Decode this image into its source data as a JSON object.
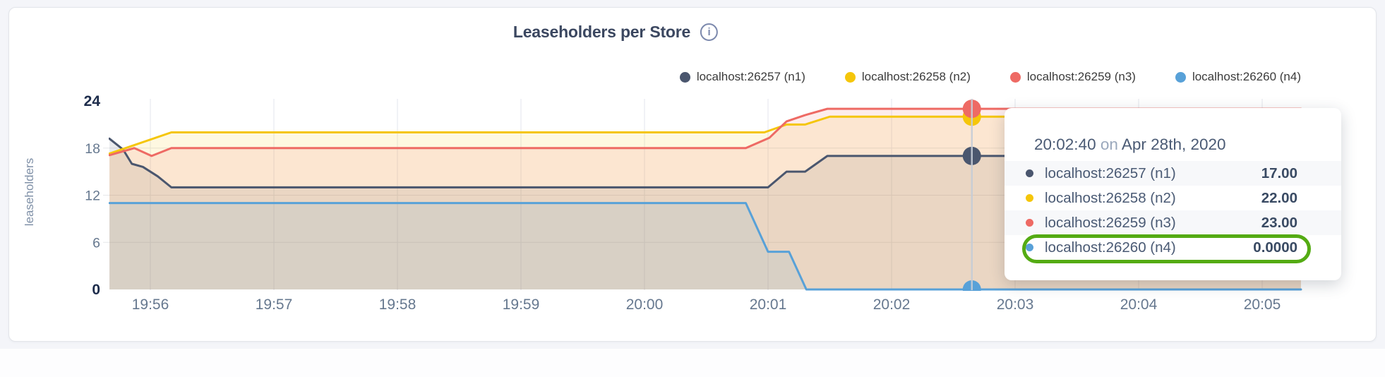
{
  "page": {
    "background": "#f4f5f9",
    "card_background": "#ffffff"
  },
  "header": {
    "title": "Leaseholders per Store",
    "info_icon_glyph": "i"
  },
  "tooltip": {
    "time": "20:02:40",
    "preposition": "on",
    "date": "Apr 28th, 2020",
    "highlight_color": "#54ab13"
  },
  "chart_data": {
    "type": "area",
    "title": "Leaseholders per Store",
    "ylabel": "leaseholders",
    "ylim": [
      0,
      24
    ],
    "grid": true,
    "legend_position": "top-right",
    "x_ticks": [
      "19:56",
      "19:57",
      "19:58",
      "19:59",
      "20:00",
      "20:01",
      "20:02",
      "20:03",
      "20:04",
      "20:05"
    ],
    "y_ticks": [
      0,
      6,
      12,
      18,
      24
    ],
    "x_range_minutes_from_1956": [
      -0.331,
      9.314
    ],
    "hover": {
      "minute": 6.65,
      "time_label": "20:02:40",
      "values": [
        17,
        22,
        23,
        0
      ]
    },
    "series": [
      {
        "name": "localhost:26257 (n1)",
        "color": "#4a566e",
        "hover_display": "17.00",
        "points": [
          [
            -0.331,
            19.2
          ],
          [
            -0.22,
            17.8
          ],
          [
            -0.15,
            16.0
          ],
          [
            -0.06,
            15.6
          ],
          [
            0.06,
            14.4
          ],
          [
            0.17,
            13
          ],
          [
            5.0,
            13
          ],
          [
            5.15,
            15
          ],
          [
            5.3,
            15
          ],
          [
            5.48,
            17
          ],
          [
            9.314,
            17
          ]
        ]
      },
      {
        "name": "localhost:26258 (n2)",
        "color": "#f5c60a",
        "hover_display": "22.00",
        "points": [
          [
            -0.331,
            17.3
          ],
          [
            0.17,
            20
          ],
          [
            4.97,
            20
          ],
          [
            5.15,
            21
          ],
          [
            5.3,
            21
          ],
          [
            5.5,
            22
          ],
          [
            9.314,
            22
          ]
        ]
      },
      {
        "name": "localhost:26259 (n3)",
        "color": "#ee6a64",
        "hover_display": "23.00",
        "points": [
          [
            -0.331,
            17.1
          ],
          [
            -0.13,
            18
          ],
          [
            0.01,
            17
          ],
          [
            0.17,
            18
          ],
          [
            4.82,
            18
          ],
          [
            5.01,
            19.3
          ],
          [
            5.15,
            21.4
          ],
          [
            5.3,
            22.2
          ],
          [
            5.48,
            23
          ],
          [
            9.314,
            23
          ]
        ]
      },
      {
        "name": "localhost:26260 (n4)",
        "color": "#58a1d8",
        "hover_display": "0.0000",
        "points": [
          [
            -0.331,
            11
          ],
          [
            4.82,
            11
          ],
          [
            5.0,
            4.8
          ],
          [
            5.17,
            4.8
          ],
          [
            5.31,
            0
          ],
          [
            9.314,
            0
          ]
        ]
      }
    ]
  }
}
